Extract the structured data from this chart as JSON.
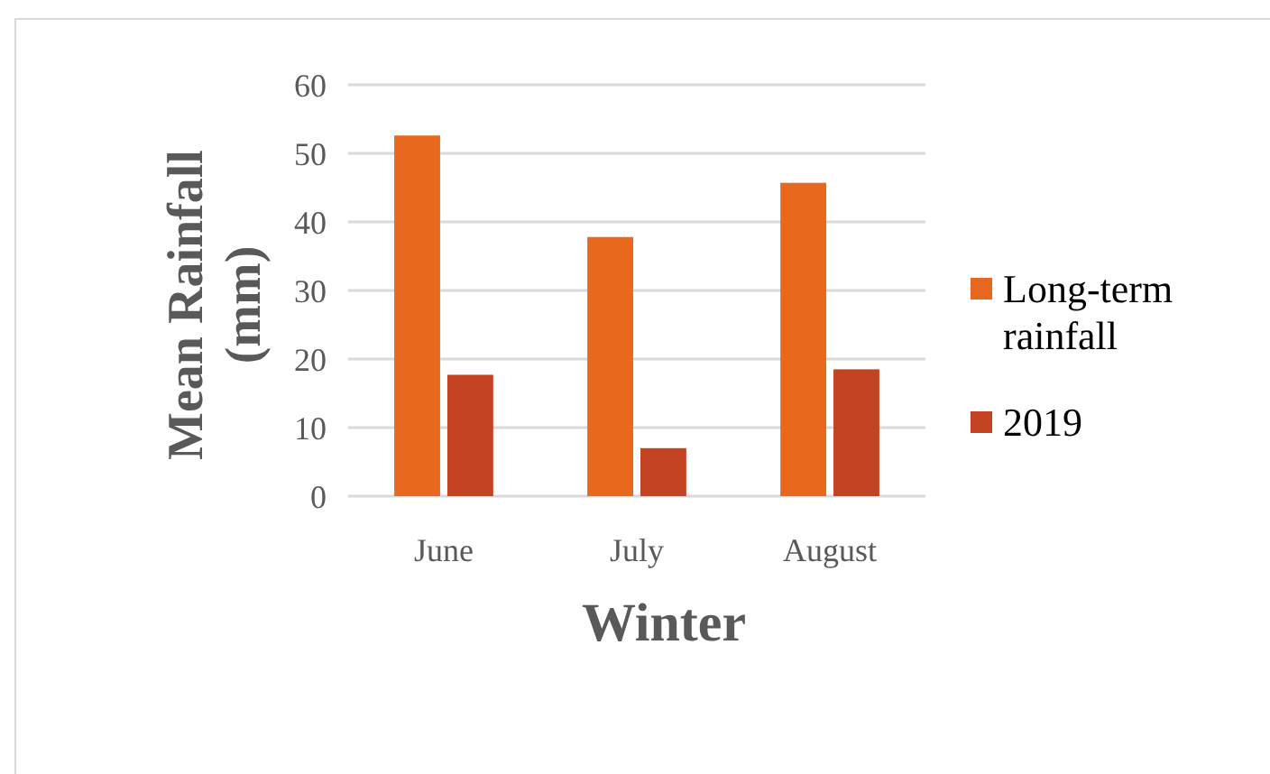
{
  "chart_data": {
    "type": "bar",
    "xlabel": "Winter",
    "ylabel": "Mean Rainfall (mm)",
    "categories": [
      "June",
      "July",
      "August"
    ],
    "series": [
      {
        "name": "Long-term rainfall",
        "color": "#e8681e",
        "values": [
          52.6,
          37.8,
          45.7
        ]
      },
      {
        "name": "2019",
        "color": "#c44322",
        "values": [
          17.7,
          7,
          18.5
        ]
      }
    ],
    "ylim": [
      0,
      60
    ],
    "yticks": [
      0,
      10,
      20,
      30,
      40,
      50,
      60
    ],
    "grid": "y",
    "legend": "right"
  }
}
